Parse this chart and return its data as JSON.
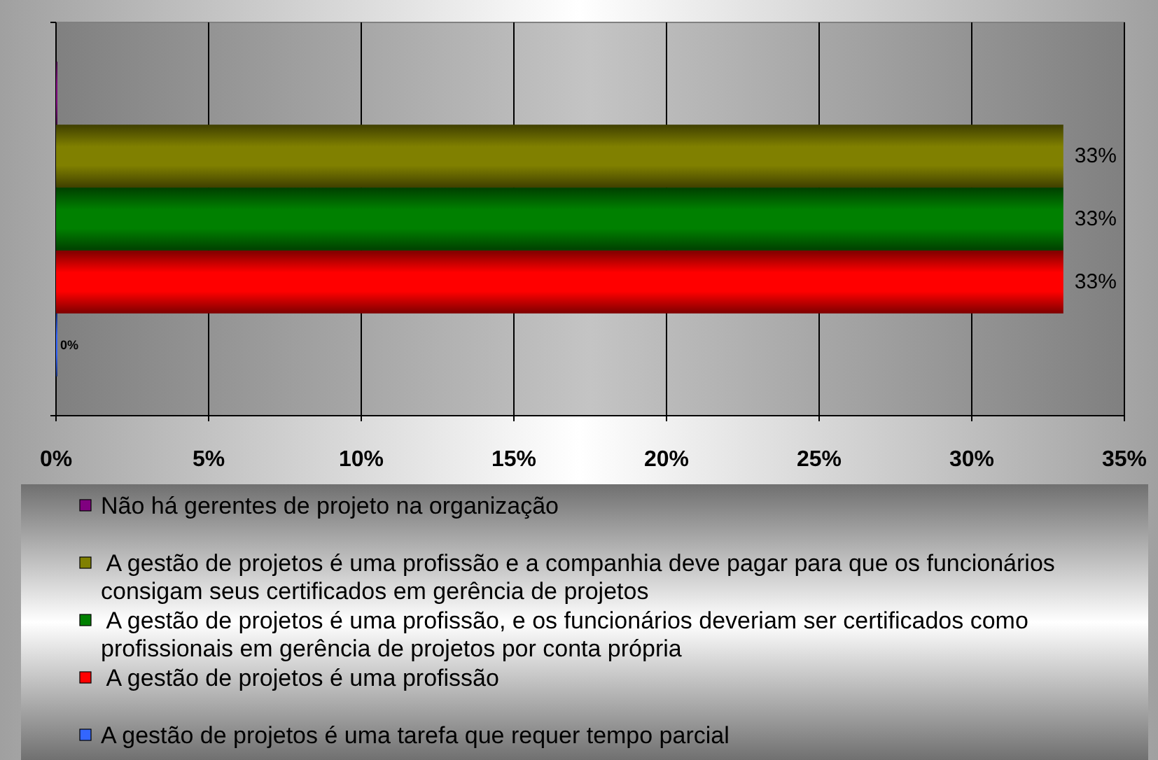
{
  "chart_data": {
    "type": "bar",
    "orientation": "horizontal",
    "categories": [
      null
    ],
    "series": [
      {
        "name": "Não há gerentes de projeto na organização",
        "color": "#800080",
        "values": [
          0
        ],
        "value_labels": [
          null
        ]
      },
      {
        "name": " A gestão de projetos é uma profissão e a companhia deve pagar para que os funcionários consigam seus certificados em gerência de projetos",
        "color": "#808000",
        "values": [
          33
        ],
        "value_labels": [
          "33%"
        ]
      },
      {
        "name": " A gestão de projetos é uma profissão, e os funcionários deveriam ser certificados como profissionais em gerência de projetos por conta própria",
        "color": "#008000",
        "values": [
          33
        ],
        "value_labels": [
          "33%"
        ]
      },
      {
        "name": " A gestão de projetos é uma profissão",
        "color": "#ff0000",
        "values": [
          33
        ],
        "value_labels": [
          "33%"
        ]
      },
      {
        "name": "A gestão de projetos é uma tarefa que requer tempo parcial",
        "color": "#3366ff",
        "values": [
          0
        ],
        "value_labels": [
          "0%"
        ]
      }
    ],
    "xlim": [
      0,
      35
    ],
    "xticks": [
      {
        "value": 0,
        "label": "0%"
      },
      {
        "value": 5,
        "label": "5%"
      },
      {
        "value": 10,
        "label": "10%"
      },
      {
        "value": 15,
        "label": "15%"
      },
      {
        "value": 20,
        "label": "20%"
      },
      {
        "value": 25,
        "label": "25%"
      },
      {
        "value": 30,
        "label": "30%"
      },
      {
        "value": 35,
        "label": "35%"
      }
    ],
    "grid": "x",
    "legend": "bottom"
  }
}
